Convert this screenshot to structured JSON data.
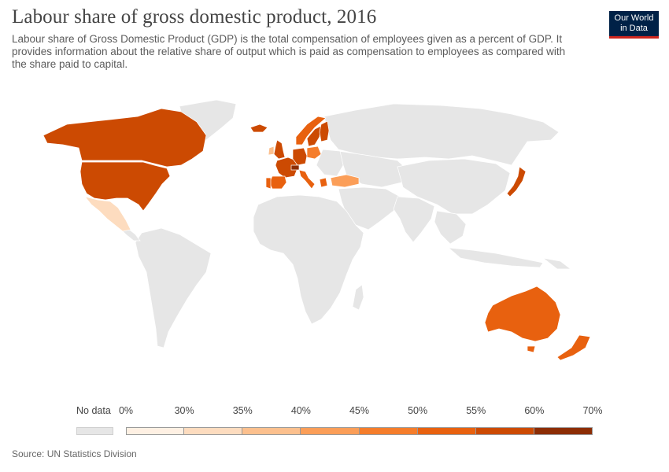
{
  "header": {
    "title": "Labour share of gross domestic product, 2016",
    "subtitle": "Labour share of Gross Domestic Product (GDP) is the total compensation of employees given as a percent of GDP. It provides information about the relative share of output which is paid as compensation to employees as compared with the share paid to capital."
  },
  "logo": {
    "line1": "Our World",
    "line2": "in Data"
  },
  "legend": {
    "no_data_label": "No data",
    "ticks": [
      "0%",
      "30%",
      "35%",
      "40%",
      "45%",
      "50%",
      "55%",
      "60%",
      "70%"
    ],
    "tick_values": [
      0,
      30,
      35,
      40,
      45,
      50,
      55,
      60,
      70
    ],
    "bin_colors": [
      "#fef0e3",
      "#fddcbf",
      "#fcc08e",
      "#fb9e58",
      "#f57d2b",
      "#e8610f",
      "#cc4a02",
      "#8c2d04"
    ],
    "no_data_color": "#e6e6e6"
  },
  "colors": {
    "no_data": "#e6e6e6",
    "ocean": "#ffffff",
    "border": "#bdbdbd"
  },
  "map": {
    "countries": [
      {
        "name": "United States",
        "bin": 6
      },
      {
        "name": "Canada",
        "bin": 6
      },
      {
        "name": "Mexico",
        "bin": 1
      },
      {
        "name": "Iceland",
        "bin": 6
      },
      {
        "name": "United Kingdom",
        "bin": 6
      },
      {
        "name": "Ireland",
        "bin": 2
      },
      {
        "name": "France",
        "bin": 6
      },
      {
        "name": "Spain",
        "bin": 5
      },
      {
        "name": "Portugal",
        "bin": 5
      },
      {
        "name": "Germany",
        "bin": 6
      },
      {
        "name": "Switzerland",
        "bin": 7
      },
      {
        "name": "Italy",
        "bin": 5
      },
      {
        "name": "Greece",
        "bin": 5
      },
      {
        "name": "Turkey",
        "bin": 3
      },
      {
        "name": "Norway",
        "bin": 5
      },
      {
        "name": "Sweden",
        "bin": 6
      },
      {
        "name": "Finland",
        "bin": 6
      },
      {
        "name": "Poland",
        "bin": 4
      },
      {
        "name": "Japan",
        "bin": 6
      },
      {
        "name": "Australia",
        "bin": 5
      },
      {
        "name": "New Zealand",
        "bin": 5
      }
    ]
  },
  "source": "Source: UN Statistics Division"
}
